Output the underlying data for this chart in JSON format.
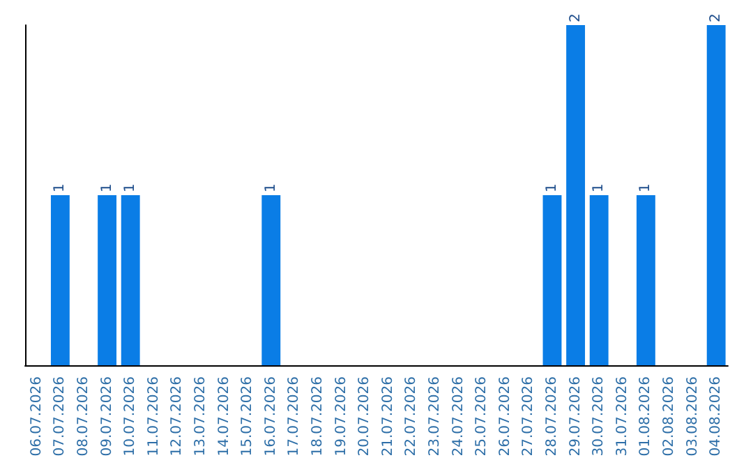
{
  "chart_data": {
    "type": "bar",
    "categories": [
      "06.07.2026",
      "07.07.2026",
      "08.07.2026",
      "09.07.2026",
      "10.07.2026",
      "11.07.2026",
      "12.07.2026",
      "13.07.2026",
      "14.07.2026",
      "15.07.2026",
      "16.07.2026",
      "17.07.2026",
      "18.07.2026",
      "19.07.2026",
      "20.07.2026",
      "21.07.2026",
      "22.07.2026",
      "23.07.2026",
      "24.07.2026",
      "25.07.2026",
      "26.07.2026",
      "27.07.2026",
      "28.07.2026",
      "29.07.2026",
      "30.07.2026",
      "31.07.2026",
      "01.08.2026",
      "02.08.2026",
      "03.08.2026",
      "04.08.2026"
    ],
    "values": [
      0,
      1,
      0,
      1,
      1,
      0,
      0,
      0,
      0,
      0,
      1,
      0,
      0,
      0,
      0,
      0,
      0,
      0,
      0,
      0,
      0,
      0,
      1,
      2,
      1,
      0,
      1,
      0,
      0,
      2
    ],
    "value_labels": [
      null,
      "1",
      null,
      "1",
      "1",
      null,
      null,
      null,
      null,
      null,
      "1",
      null,
      null,
      null,
      null,
      null,
      null,
      null,
      null,
      null,
      null,
      null,
      "1",
      "2",
      "1",
      null,
      "1",
      null,
      null,
      "2"
    ],
    "color": "#0a7de6",
    "ylim": [
      0,
      2
    ],
    "tick_labels": "x"
  }
}
